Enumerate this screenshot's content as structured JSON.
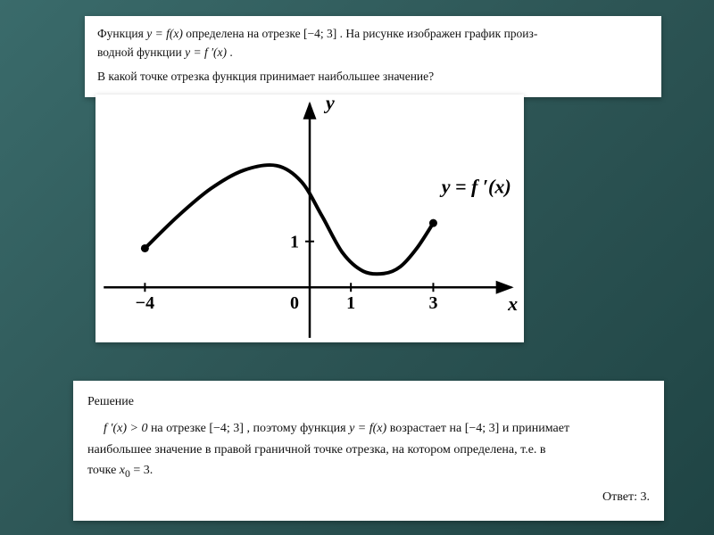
{
  "problem": {
    "line1_pre": "Функция ",
    "line1_fn": "y = f(x)",
    "line1_mid": " определена на отрезке ",
    "line1_interval": "[−4; 3]",
    "line1_post": ". На рисунке изображен график произ-",
    "line2_pre": "водной функции ",
    "line2_fn": "y = f ′(x)",
    "line2_post": ".",
    "question": "В какой точке отрезка функция принимает наибольшее значение?"
  },
  "graph": {
    "axes_color": "#000000",
    "curve_color": "#000000",
    "tick_color": "#000000",
    "background": "#ffffff",
    "stroke_width_axes": 2.5,
    "stroke_width_curve": 4,
    "xlim": [
      -5.2,
      5.2
    ],
    "ylim": [
      -1.2,
      4.2
    ],
    "x_ticks": [
      {
        "x": -4,
        "label": "−4"
      },
      {
        "x": 1,
        "label": "1"
      },
      {
        "x": 3,
        "label": "3"
      }
    ],
    "y_ticks": [
      {
        "y": 1,
        "label": "1"
      }
    ],
    "origin_label": "0",
    "curve_points": [
      {
        "x": -4.0,
        "y": 0.85
      },
      {
        "x": -3.2,
        "y": 1.55
      },
      {
        "x": -2.4,
        "y": 2.15
      },
      {
        "x": -1.6,
        "y": 2.55
      },
      {
        "x": -0.8,
        "y": 2.65
      },
      {
        "x": -0.2,
        "y": 2.3
      },
      {
        "x": 0.3,
        "y": 1.55
      },
      {
        "x": 0.8,
        "y": 0.75
      },
      {
        "x": 1.3,
        "y": 0.35
      },
      {
        "x": 1.8,
        "y": 0.3
      },
      {
        "x": 2.2,
        "y": 0.45
      },
      {
        "x": 2.6,
        "y": 0.85
      },
      {
        "x": 3.0,
        "y": 1.4
      }
    ],
    "endpoint_dot_radius": 4.5,
    "y_axis_label": "y",
    "x_axis_label": "x",
    "curve_label": "y  =  f ′(x)",
    "label_fontsize": 22,
    "tick_fontsize": 20
  },
  "solution": {
    "title": "Решение",
    "body_p1a": "f ′(x) > 0",
    "body_p1b": " на отрезке ",
    "body_p1c": "[−4; 3]",
    "body_p1d": ", поэтому функция ",
    "body_p1e": "y = f(x)",
    "body_p1f": " возрастает на ",
    "body_p1g": "[−4; 3]",
    "body_p1h": " и принимает",
    "body_p2a": "наибольшее значение в правой граничной точке отрезка, на котором определена, т.е. в",
    "body_p3a": "точке ",
    "body_p3b": "x",
    "body_p3c": "0",
    "body_p3d": " = 3.",
    "answer": "Ответ: 3."
  }
}
